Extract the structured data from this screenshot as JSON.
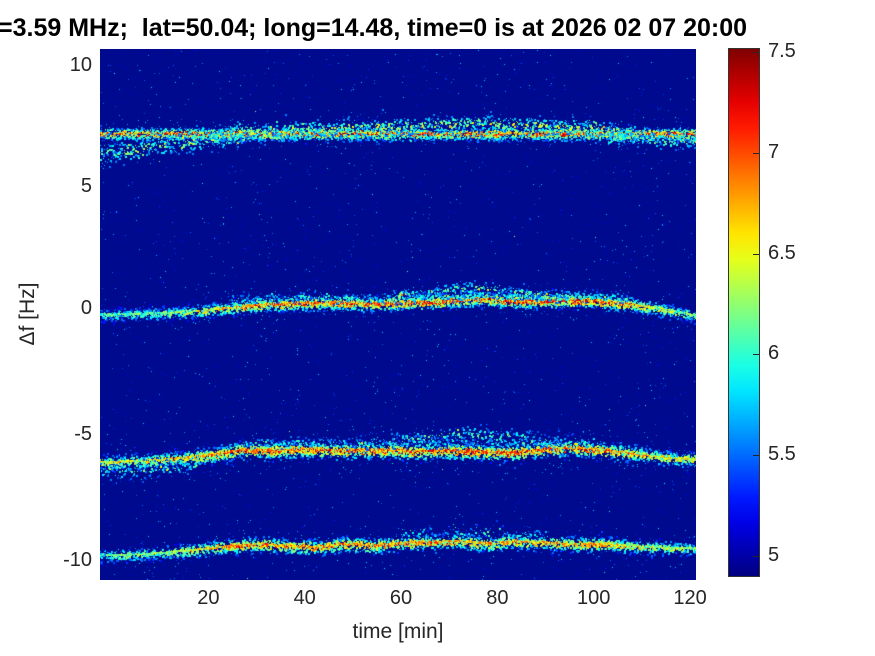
{
  "figure": {
    "title": "=3.59 MHz;  lat=50.04; long=14.48, time=0 is at 2026 02 07 20:00"
  },
  "colors": {
    "plot_background": "#000a8e",
    "axis_text": "#262626",
    "title_text": "#000000",
    "colormap": "jet"
  },
  "chart_data": {
    "type": "heatmap",
    "title": "=3.59 MHz;  lat=50.04; long=14.48, time=0 is at 2026 02 07 20:00",
    "xlabel": "time [min]",
    "ylabel": "Δf [Hz]",
    "xlim": [
      -2.5,
      121.2
    ],
    "ylim": [
      -10.9,
      10.7
    ],
    "xticks": [
      20,
      40,
      60,
      80,
      100,
      120
    ],
    "yticks": [
      10,
      5,
      0,
      -5,
      -10
    ],
    "grid": false,
    "colorbar": {
      "ticks": [
        7.5,
        7,
        6.5,
        6,
        5.5,
        5
      ],
      "value_min": 4.88,
      "value_max": 7.52,
      "colormap": "jet",
      "position": "right"
    },
    "background_value": 5.0,
    "bands": [
      {
        "name": "carrier-line-plus-7Hz",
        "style": "dashed",
        "value_peak": 7.3,
        "sigma_hz": 0.12,
        "density": 5,
        "points": [
          [
            -2.5,
            7.17
          ],
          [
            121.2,
            7.17
          ]
        ],
        "intensity": [
          [
            -2.5,
            1
          ],
          [
            121.2,
            1
          ]
        ],
        "clouds": [
          {
            "points": [
              [
                -2.5,
                6.35
              ],
              [
                5,
                6.55
              ],
              [
                12,
                6.75
              ],
              [
                20,
                6.95
              ],
              [
                27,
                7.08
              ]
            ],
            "sigma_hz": 0.22,
            "density": 3.2,
            "vmax": 0.5
          },
          {
            "points": [
              [
                24,
                7.25
              ],
              [
                35,
                7.32
              ],
              [
                45,
                7.4
              ],
              [
                55,
                7.46
              ],
              [
                65,
                7.52
              ],
              [
                75,
                7.62
              ],
              [
                85,
                7.55
              ],
              [
                95,
                7.45
              ],
              [
                103,
                7.3
              ],
              [
                109,
                7.22
              ]
            ],
            "sigma_hz": 0.17,
            "density": 3.0,
            "vmax": 0.55
          },
          {
            "points": [
              [
                103,
                7.0
              ],
              [
                110,
                6.95
              ],
              [
                115,
                6.9
              ],
              [
                121.2,
                6.88
              ]
            ],
            "sigma_hz": 0.16,
            "density": 2.6,
            "vmax": 0.5
          },
          {
            "points": [
              [
                -2.5,
                7.06
              ],
              [
                121.2,
                7.06
              ]
            ],
            "sigma_hz": 0.1,
            "density": 1.2,
            "vmax": 0.45
          }
        ]
      },
      {
        "name": "doppler-trace-0Hz",
        "style": "wavy",
        "value_peak": 7.45,
        "sigma_hz": 0.14,
        "density": 7,
        "points": [
          [
            -2.5,
            -0.28
          ],
          [
            3,
            -0.25
          ],
          [
            10,
            -0.2
          ],
          [
            18,
            -0.12
          ],
          [
            24,
            0.0
          ],
          [
            30,
            0.12
          ],
          [
            38,
            0.2
          ],
          [
            46,
            0.22
          ],
          [
            54,
            0.18
          ],
          [
            62,
            0.22
          ],
          [
            70,
            0.28
          ],
          [
            76,
            0.38
          ],
          [
            82,
            0.3
          ],
          [
            88,
            0.28
          ],
          [
            94,
            0.33
          ],
          [
            100,
            0.28
          ],
          [
            106,
            0.18
          ],
          [
            112,
            0.02
          ],
          [
            116,
            -0.12
          ],
          [
            121.2,
            -0.3
          ]
        ],
        "intensity": [
          [
            -2.5,
            0.55
          ],
          [
            10,
            0.62
          ],
          [
            20,
            0.78
          ],
          [
            30,
            0.95
          ],
          [
            60,
            1
          ],
          [
            105,
            1
          ],
          [
            112,
            0.8
          ],
          [
            121.2,
            0.6
          ]
        ],
        "clouds": [
          {
            "points": [
              [
                58,
                0.5
              ],
              [
                66,
                0.62
              ],
              [
                73,
                0.85
              ],
              [
                80,
                0.72
              ],
              [
                88,
                0.55
              ],
              [
                95,
                0.5
              ]
            ],
            "sigma_hz": 0.15,
            "density": 2.0,
            "vmax": 0.5
          },
          {
            "points": [
              [
                24,
                0.35
              ],
              [
                40,
                0.45
              ],
              [
                55,
                0.4
              ],
              [
                70,
                0.5
              ],
              [
                85,
                0.55
              ],
              [
                100,
                0.5
              ],
              [
                108,
                0.4
              ]
            ],
            "sigma_hz": 0.12,
            "density": 1.4,
            "vmax": 0.42
          }
        ]
      },
      {
        "name": "doppler-trace-minus-5.7Hz",
        "style": "wavy",
        "value_peak": 7.4,
        "sigma_hz": 0.16,
        "density": 7,
        "points": [
          [
            -2.5,
            -6.12
          ],
          [
            4,
            -6.08
          ],
          [
            10,
            -6.02
          ],
          [
            16,
            -5.92
          ],
          [
            22,
            -5.78
          ],
          [
            27,
            -5.62
          ],
          [
            33,
            -5.66
          ],
          [
            40,
            -5.6
          ],
          [
            48,
            -5.66
          ],
          [
            56,
            -5.62
          ],
          [
            63,
            -5.68
          ],
          [
            70,
            -5.64
          ],
          [
            77,
            -5.7
          ],
          [
            84,
            -5.72
          ],
          [
            90,
            -5.6
          ],
          [
            96,
            -5.55
          ],
          [
            101,
            -5.62
          ],
          [
            106,
            -5.72
          ],
          [
            111,
            -5.85
          ],
          [
            116,
            -5.95
          ],
          [
            121.2,
            -6.0
          ]
        ],
        "intensity": [
          [
            -2.5,
            0.75
          ],
          [
            15,
            0.82
          ],
          [
            30,
            1
          ],
          [
            100,
            1
          ],
          [
            110,
            0.85
          ],
          [
            121.2,
            0.75
          ]
        ],
        "clouds": [
          {
            "points": [
              [
                58,
                -5.25
              ],
              [
                66,
                -5.1
              ],
              [
                74,
                -4.95
              ],
              [
                80,
                -5.05
              ],
              [
                87,
                -5.2
              ],
              [
                94,
                -5.35
              ]
            ],
            "sigma_hz": 0.18,
            "density": 1.8,
            "vmax": 0.45
          },
          {
            "points": [
              [
                27,
                -5.35
              ],
              [
                40,
                -5.3
              ],
              [
                52,
                -5.35
              ],
              [
                64,
                -5.3
              ],
              [
                76,
                -5.35
              ],
              [
                88,
                -5.3
              ],
              [
                100,
                -5.32
              ]
            ],
            "sigma_hz": 0.14,
            "density": 1.2,
            "vmax": 0.4
          },
          {
            "points": [
              [
                -2.5,
                -6.5
              ],
              [
                8,
                -6.4
              ],
              [
                18,
                -6.2
              ]
            ],
            "sigma_hz": 0.2,
            "density": 1.8,
            "vmax": 0.42
          }
        ]
      },
      {
        "name": "doppler-trace-minus-9.5Hz",
        "style": "wavy",
        "value_peak": 7.25,
        "sigma_hz": 0.15,
        "density": 6,
        "points": [
          [
            -2.5,
            -9.82
          ],
          [
            4,
            -9.78
          ],
          [
            10,
            -9.72
          ],
          [
            17,
            -9.6
          ],
          [
            24,
            -9.45
          ],
          [
            30,
            -9.38
          ],
          [
            36,
            -9.42
          ],
          [
            42,
            -9.48
          ],
          [
            48,
            -9.35
          ],
          [
            54,
            -9.42
          ],
          [
            60,
            -9.32
          ],
          [
            66,
            -9.28
          ],
          [
            72,
            -9.25
          ],
          [
            78,
            -9.35
          ],
          [
            84,
            -9.25
          ],
          [
            90,
            -9.3
          ],
          [
            96,
            -9.38
          ],
          [
            102,
            -9.35
          ],
          [
            108,
            -9.45
          ],
          [
            113,
            -9.5
          ],
          [
            121.2,
            -9.55
          ]
        ],
        "intensity": [
          [
            -2.5,
            0.6
          ],
          [
            12,
            0.68
          ],
          [
            25,
            0.95
          ],
          [
            100,
            0.9
          ],
          [
            110,
            0.78
          ],
          [
            121.2,
            0.65
          ]
        ],
        "clouds": [
          {
            "points": [
              [
                60,
                -9.0
              ],
              [
                70,
                -8.9
              ],
              [
                80,
                -8.95
              ],
              [
                90,
                -9.02
              ]
            ],
            "sigma_hz": 0.15,
            "density": 1.1,
            "vmax": 0.4
          }
        ]
      }
    ]
  }
}
